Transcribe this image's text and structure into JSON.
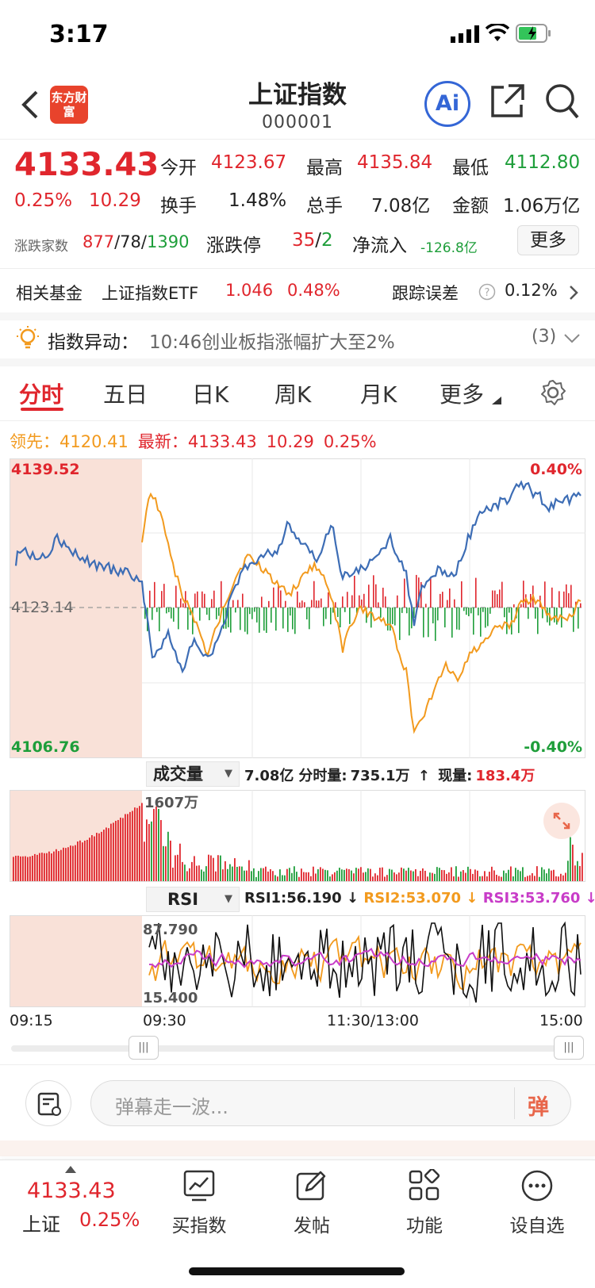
{
  "status": {
    "time": "3:17"
  },
  "header": {
    "title": "上证指数",
    "code": "000001",
    "logo_text": "东方财富",
    "ai_label": "Ai"
  },
  "quote": {
    "price": "4133.43",
    "pct": "0.25%",
    "change": "10.29",
    "open_label": "今开",
    "open": "4123.67",
    "high_label": "最高",
    "high": "4135.84",
    "low_label": "最低",
    "low": "4112.80",
    "turnover_label": "换手",
    "turnover": "1.48%",
    "volume_label": "总手",
    "volume": "7.08亿",
    "amount_label": "金额",
    "amount": "1.06万亿",
    "breadth_label": "涨跌家数",
    "up": "877",
    "flat": "78",
    "down": "1390",
    "limit_label": "涨跌停",
    "limit_up": "35",
    "limit_down": "2",
    "netflow_label": "净流入",
    "netflow": "-126.8亿",
    "more_label": "更多"
  },
  "fund": {
    "label": "相关基金",
    "name": "上证指数ETF",
    "price": "1.046",
    "pct": "0.48%",
    "tracking_label": "跟踪误差",
    "tracking": "0.12%"
  },
  "alert": {
    "label": "指数异动：",
    "text": "10:46创业板指涨幅扩大至2%",
    "count": "(3)"
  },
  "tabs": [
    {
      "label": "分时"
    },
    {
      "label": "五日"
    },
    {
      "label": "日K"
    },
    {
      "label": "周K"
    },
    {
      "label": "月K"
    },
    {
      "label": "更多"
    }
  ],
  "legend": {
    "lead_label": "领先：",
    "lead": "4120.41",
    "latest_label": "最新：",
    "latest": "4133.43",
    "latest_change": "10.29",
    "latest_pct": "0.25%"
  },
  "chart_labels": {
    "ymax": "4139.52",
    "ymid": "4123.14",
    "ymin": "4106.76",
    "pmax": "0.40%",
    "pmin": "-0.40%"
  },
  "volume_panel": {
    "selector": "成交量",
    "total": "7.08亿",
    "fenshi_label": "分时量:",
    "fenshi": "735.1万",
    "now_label": "现量:",
    "now": "183.4万",
    "max_label": "1607万"
  },
  "rsi_panel": {
    "selector": "RSI",
    "rsi1": "RSI1:56.190",
    "rsi2": "RSI2:53.070",
    "rsi3": "RSI3:53.760",
    "max": "87.790",
    "min": "15.400"
  },
  "time_axis": {
    "t0": "09:15",
    "t1": "09:30",
    "t2": "11:30/13:00",
    "t3": "15:00"
  },
  "comment": {
    "placeholder": "弹幕走一波...",
    "danmu": "弹"
  },
  "bottom_nav": {
    "price": "4133.43",
    "name": "上证",
    "pct": "0.25%",
    "items": [
      {
        "label": "买指数"
      },
      {
        "label": "发帖"
      },
      {
        "label": "功能"
      },
      {
        "label": "设自选"
      }
    ]
  },
  "colors": {
    "up": "#e0262d",
    "down": "#1e9e3a",
    "index_line": "#3d6db5",
    "avg_line": "#f29a1e",
    "rsi3": "#c83cc8"
  },
  "chart_data": {
    "type": "line",
    "series": [],
    "y_price_range": [
      4106.76,
      4139.52
    ],
    "y_pct_range": [
      -0.4,
      0.4
    ],
    "baseline": 4123.14,
    "x_ticks": [
      "09:15",
      "09:30",
      "11:30/13:00",
      "15:00"
    ],
    "rsi_range": [
      15.4,
      87.79
    ],
    "volume_max_label": "1607万"
  }
}
